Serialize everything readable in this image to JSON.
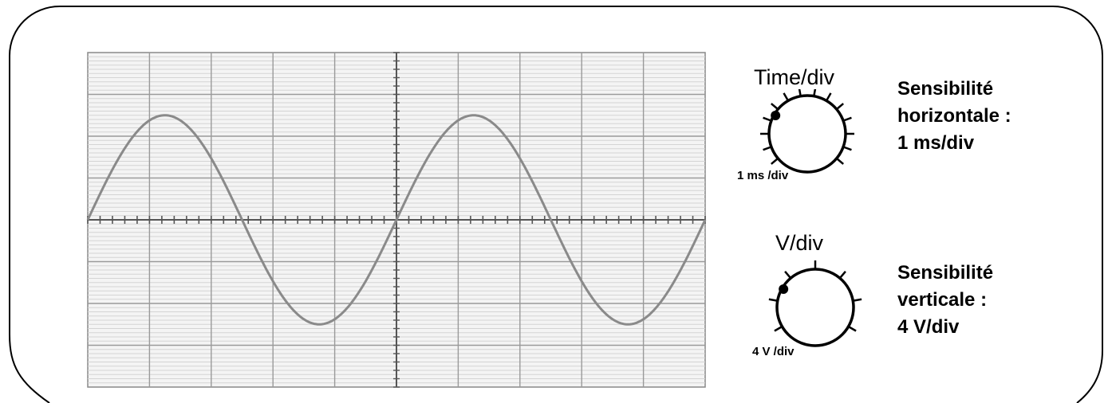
{
  "screen": {
    "divisions_x": 10,
    "divisions_y": 8,
    "waveform": {
      "type": "sine",
      "amplitude_div": 2.5,
      "period_div": 5,
      "phase_at_center_deg": 0
    }
  },
  "time_knob": {
    "title": "Time/div",
    "value": "1 ms /div",
    "sensitivity_lines": [
      "Sensibilité",
      "horizontale :",
      "1 ms/div"
    ]
  },
  "voltage_knob": {
    "title": "V/div",
    "value": "4 V /div",
    "sensitivity_lines": [
      "Sensibilité",
      "verticale :",
      "4 V/div"
    ]
  },
  "colors": {
    "trace": "#8a8a8a",
    "grid_major": "#9a9a9a",
    "grid_minor": "#d4d4d4",
    "axis": "#555555"
  }
}
